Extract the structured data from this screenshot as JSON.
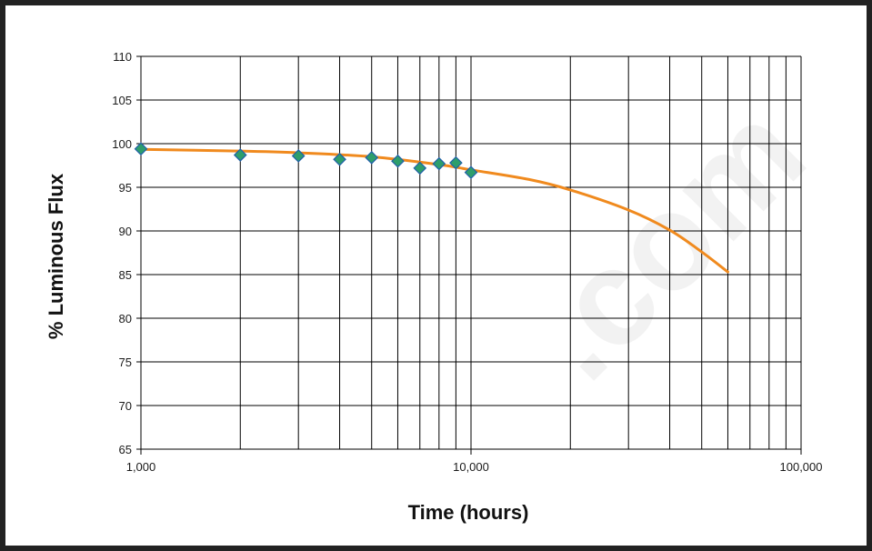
{
  "chart_data": {
    "type": "line",
    "xlabel": "Time (hours)",
    "ylabel": "% Luminous Flux",
    "xscale": "log",
    "xlim": [
      1000,
      100000
    ],
    "ylim": [
      65,
      110
    ],
    "xticks": [
      1000,
      10000,
      100000
    ],
    "xtick_labels": [
      "1,000",
      "10,000",
      "100,000"
    ],
    "yticks": [
      65,
      70,
      75,
      80,
      85,
      90,
      95,
      100,
      105,
      110
    ],
    "grid": true,
    "legend": "none",
    "series": [
      {
        "kind": "markers",
        "marker": "diamond",
        "color": "#2e9e6c",
        "edge_color": "#1f5fa8",
        "x": [
          1000,
          2000,
          3000,
          4000,
          5000,
          6000,
          7000,
          8000,
          9000,
          10000
        ],
        "y": [
          99.4,
          98.7,
          98.6,
          98.2,
          98.4,
          98.0,
          97.2,
          97.7,
          97.8,
          96.7
        ]
      },
      {
        "kind": "line",
        "color": "#f08a1e",
        "x": [
          1000,
          2000,
          3000,
          5000,
          8000,
          10000,
          15000,
          20000,
          30000,
          40000,
          50000,
          60000
        ],
        "y": [
          99.35,
          99.15,
          98.95,
          98.5,
          97.6,
          97.0,
          95.9,
          94.7,
          92.4,
          90.1,
          87.6,
          85.3
        ]
      }
    ]
  },
  "watermark_text": ".com"
}
